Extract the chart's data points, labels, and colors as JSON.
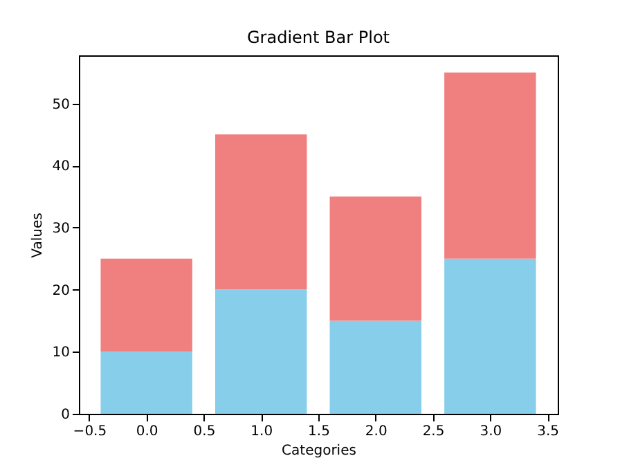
{
  "chart_data": {
    "type": "bar",
    "title": "Gradient Bar Plot",
    "xlabel": "Categories",
    "ylabel": "Values",
    "stacked": true,
    "x": [
      0,
      1,
      2,
      3
    ],
    "series": [
      {
        "color": "#87ceeb",
        "values": [
          10,
          20,
          15,
          25
        ]
      },
      {
        "color": "#f08080",
        "values": [
          15,
          25,
          20,
          30
        ]
      }
    ],
    "xlim": [
      -0.59,
      3.59
    ],
    "xticks": [
      {
        "value": -0.5,
        "label": "−0.5"
      },
      {
        "value": 0,
        "label": "0.0"
      },
      {
        "value": 0.5,
        "label": "0.5"
      },
      {
        "value": 1,
        "label": "1.0"
      },
      {
        "value": 1.5,
        "label": "1.5"
      },
      {
        "value": 2,
        "label": "2.0"
      },
      {
        "value": 2.5,
        "label": "2.5"
      },
      {
        "value": 3,
        "label": "3.0"
      },
      {
        "value": 3.5,
        "label": "3.5"
      }
    ],
    "ylim": [
      0,
      57.75
    ],
    "yticks": [
      0,
      10,
      20,
      30,
      40,
      50
    ],
    "grid": false,
    "legend": false
  }
}
